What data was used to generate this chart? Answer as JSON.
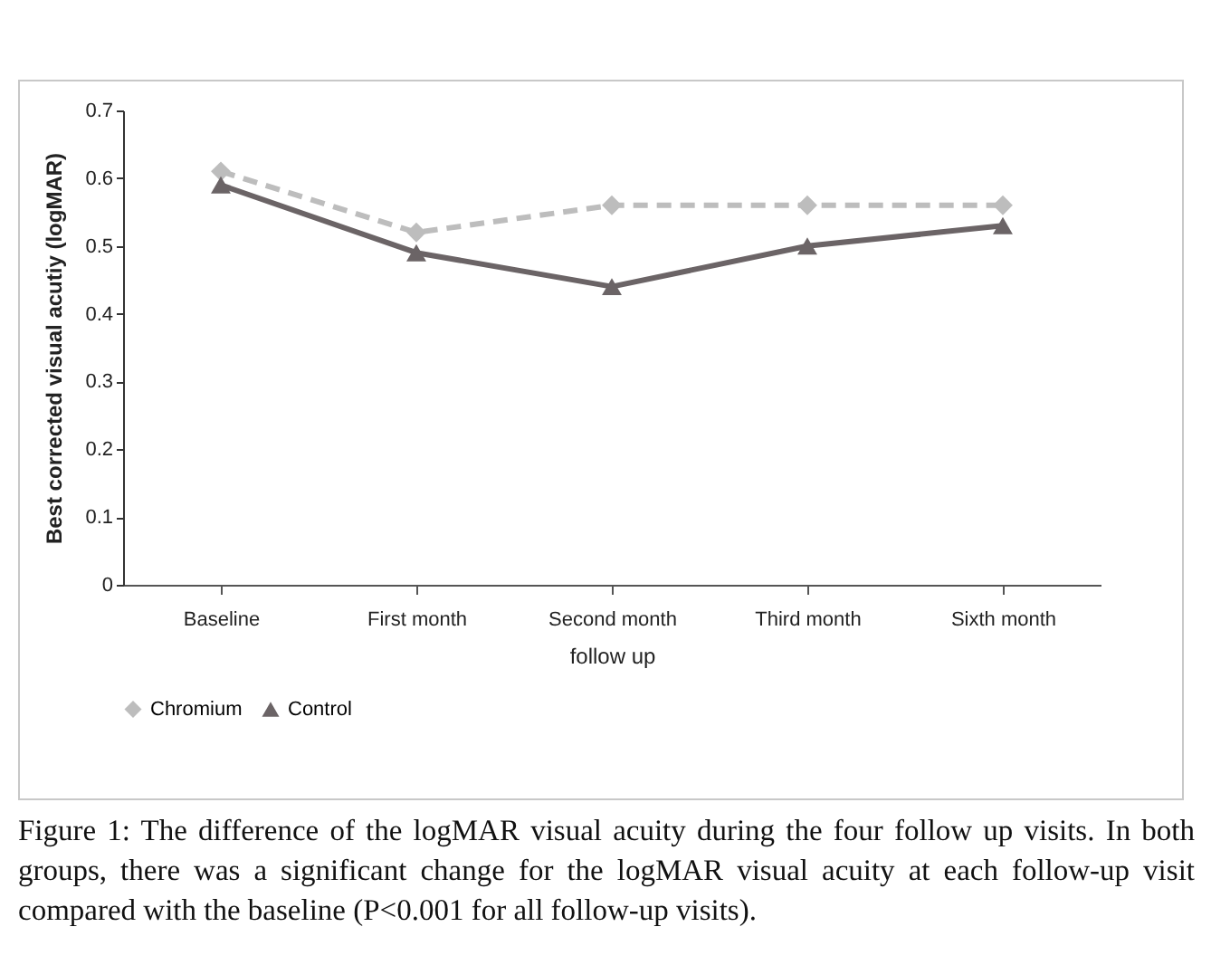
{
  "chart_data": {
    "type": "line",
    "xlabel": "follow up",
    "ylabel": "Best corrected visual acutiy (logMAR)",
    "categories": [
      "Baseline",
      "First month",
      "Second month",
      "Third month",
      "Sixth month"
    ],
    "series": [
      {
        "name": "Chromium",
        "color": "#bdbdbd",
        "values": [
          0.61,
          0.52,
          0.56,
          0.56,
          0.56
        ],
        "line_style": "dashed",
        "marker": "diamond"
      },
      {
        "name": "Control",
        "color": "#6b6466",
        "values": [
          0.59,
          0.49,
          0.44,
          0.5,
          0.53
        ],
        "line_style": "solid",
        "marker": "triangle"
      }
    ],
    "ylim": [
      0,
      0.7
    ],
    "yticks": [
      0,
      0.1,
      0.2,
      0.3,
      0.4,
      0.5,
      0.6,
      0.7
    ],
    "grid": false,
    "legend": "bottom",
    "annotations": [
      "Figure 1: The difference of the logMAR visual acuity during the four follow up visits. In both groups, there was a significant change for the logMAR visual acuity at each follow-up visit compared with the baseline (P<0.001 for all follow-up visits)."
    ]
  }
}
